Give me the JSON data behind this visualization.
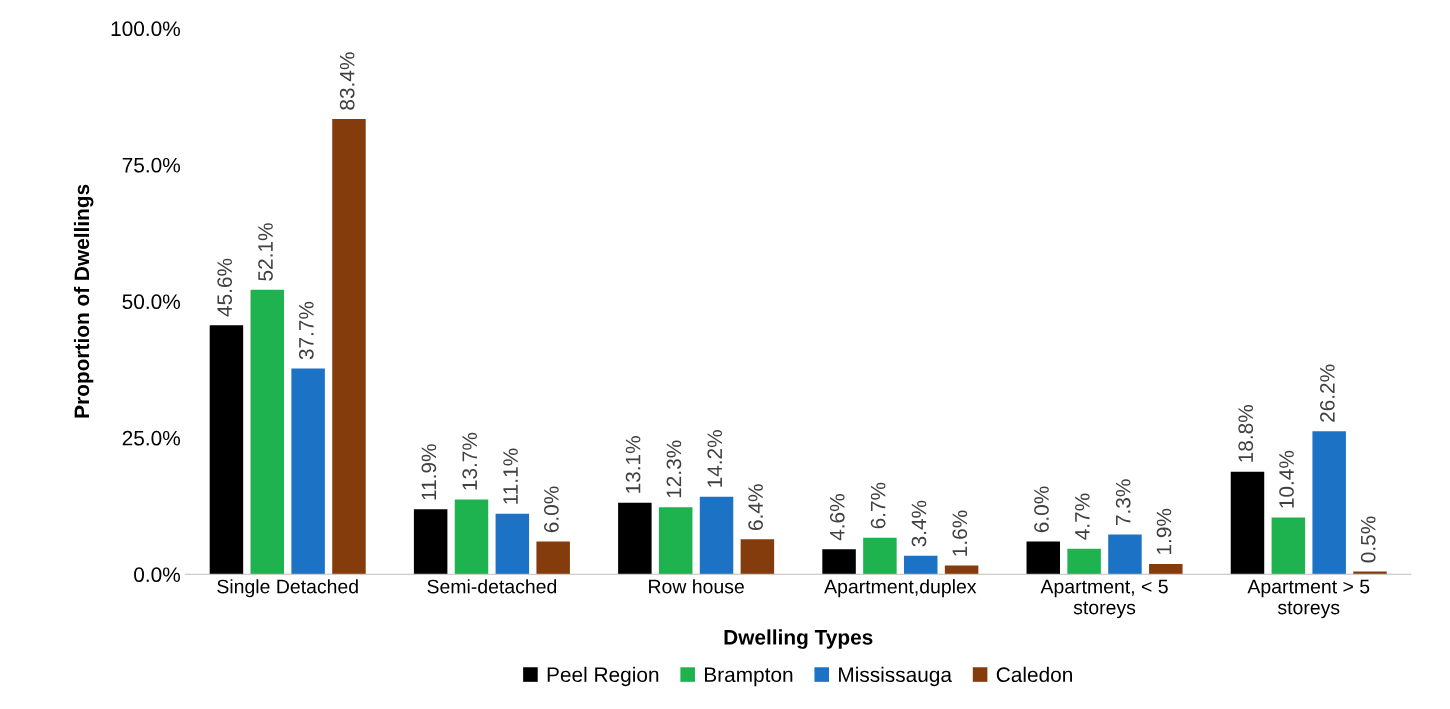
{
  "chart_data": {
    "type": "bar",
    "xlabel": "Dwelling Types",
    "ylabel": "Proportion of Dwellings",
    "categories": [
      "Single Detached",
      "Semi-detached",
      "Row house",
      "Apartment,duplex",
      "Apartment, < 5\nstoreys",
      "Apartment > 5\nstoreys"
    ],
    "series": [
      {
        "name": "Peel Region",
        "color": "#000000",
        "values": [
          45.6,
          11.9,
          13.1,
          4.6,
          6.0,
          18.8
        ],
        "value_labels": [
          "45.6%",
          "11.9%",
          "13.1%",
          "4.6%",
          "6.0%",
          "18.8%"
        ]
      },
      {
        "name": "Brampton",
        "color": "#1fb350",
        "values": [
          52.1,
          13.7,
          12.3,
          6.7,
          4.7,
          10.4
        ],
        "value_labels": [
          "52.1%",
          "13.7%",
          "12.3%",
          "6.7%",
          "4.7%",
          "10.4%"
        ]
      },
      {
        "name": "Mississauga",
        "color": "#1c72c4",
        "values": [
          37.7,
          11.1,
          14.2,
          3.4,
          7.3,
          26.2
        ],
        "value_labels": [
          "37.7%",
          "11.1%",
          "14.2%",
          "3.4%",
          "7.3%",
          "26.2%"
        ]
      },
      {
        "name": "Caledon",
        "color": "#843c0c",
        "values": [
          83.4,
          6.0,
          6.4,
          1.6,
          1.9,
          0.5
        ],
        "value_labels": [
          "83.4%",
          "6.0%",
          "6.4%",
          "1.6%",
          "1.9%",
          "0.5%"
        ]
      }
    ],
    "ylim": [
      0,
      100
    ],
    "yticks": [
      {
        "value": 0,
        "label": "0.0%"
      },
      {
        "value": 25,
        "label": "25.0%"
      },
      {
        "value": 50,
        "label": "50.0%"
      },
      {
        "value": 75,
        "label": "75.0%"
      },
      {
        "value": 100,
        "label": "100.0%"
      }
    ],
    "grid": false,
    "legend": "bottom"
  }
}
